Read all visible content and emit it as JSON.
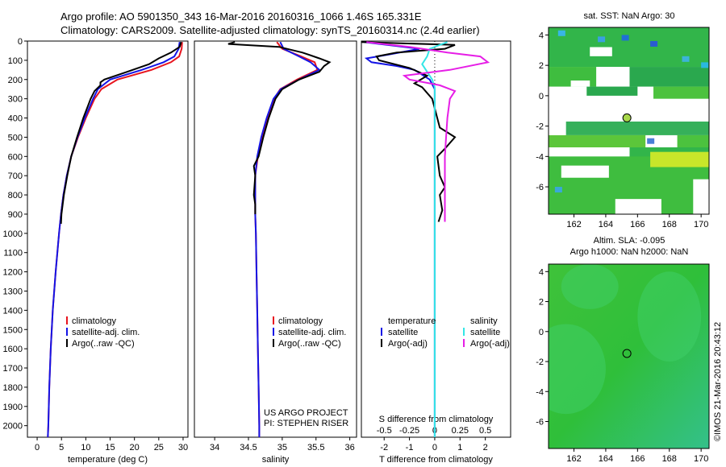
{
  "header": {
    "line1": "Argo profile: AO 5901350_343 16-Mar-2016 20160316_1066 1.46S 165.331E",
    "line2": "Climatology: CARS2009. Satellite-adjusted climatology: synTS_20160314.nc (2.4d earlier)"
  },
  "colors": {
    "climatology": "#e8141e",
    "satellite": "#1414e6",
    "argo": "#000000",
    "sat_salinity": "#33e6e6",
    "argo_salinity": "#e61ee6",
    "map_green": "#2fbf3a"
  },
  "footer": {
    "project": "US ARGO PROJECT",
    "pi": "PI: STEPHEN RISER",
    "imos": "©IMOS 21-Mar-2016 20:43:12"
  },
  "chart_data": [
    {
      "type": "line",
      "id": "temperature",
      "xlabel": "temperature (deg C)",
      "xlim": [
        -2,
        31
      ],
      "xticks": [
        0,
        5,
        10,
        15,
        20,
        25,
        30
      ],
      "xticklabels": [
        "0",
        "5",
        "10",
        "15",
        "20",
        "25",
        "30"
      ],
      "ylim": [
        2060,
        0
      ],
      "yticks": [
        0,
        100,
        200,
        300,
        400,
        500,
        600,
        700,
        800,
        900,
        1000,
        1100,
        1200,
        1300,
        1400,
        1500,
        1600,
        1700,
        1800,
        1900,
        2000
      ],
      "yticklabels": [
        "0",
        "100",
        "200",
        "300",
        "400",
        "500",
        "600",
        "700",
        "800",
        "900",
        "1000",
        "1100",
        "1200",
        "1300",
        "1400",
        "1500",
        "1600",
        "1700",
        "1800",
        "1900",
        "2000"
      ],
      "legend": [
        "climatology",
        "satellite-adj. clim.",
        "Argo(..raw -QC)"
      ],
      "series": [
        {
          "name": "climatology",
          "color": "#e8141e",
          "depth": [
            5,
            40,
            80,
            110,
            150,
            200,
            250,
            300,
            400,
            500,
            600,
            700,
            800,
            900,
            1000,
            1200,
            1400,
            1600,
            1800,
            2000,
            2060
          ],
          "values": [
            29.8,
            29.7,
            29.2,
            27.5,
            23.5,
            16.5,
            13.2,
            11.8,
            10.0,
            8.4,
            7.0,
            6.1,
            5.4,
            4.9,
            4.5,
            3.8,
            3.2,
            2.8,
            2.5,
            2.3,
            2.2
          ]
        },
        {
          "name": "satellite-adj. clim.",
          "color": "#1414e6",
          "depth": [
            5,
            40,
            80,
            110,
            150,
            200,
            250,
            300,
            400,
            500,
            600,
            700,
            800,
            900,
            1000,
            1200,
            1400,
            1600,
            1800,
            2000,
            2060
          ],
          "values": [
            29.3,
            29.1,
            28.2,
            26.0,
            21.5,
            15.0,
            12.5,
            11.5,
            9.8,
            8.3,
            7.0,
            6.1,
            5.4,
            4.9,
            4.5,
            3.8,
            3.2,
            2.8,
            2.5,
            2.3,
            2.2
          ]
        },
        {
          "name": "Argo(..raw -QC)",
          "color": "#000000",
          "depth": [
            5,
            30,
            60,
            90,
            120,
            160,
            200,
            215,
            230,
            260,
            300,
            400,
            500,
            600,
            700,
            800,
            900,
            950
          ],
          "values": [
            29.6,
            29.3,
            27.5,
            25.0,
            23.0,
            18.5,
            13.8,
            13.0,
            13.0,
            11.8,
            11.0,
            9.5,
            8.2,
            7.0,
            6.2,
            5.5,
            5.0,
            4.9
          ]
        }
      ]
    },
    {
      "type": "line",
      "id": "salinity",
      "xlabel": "salinity",
      "xlim": [
        33.7,
        36.1
      ],
      "xticks": [
        34,
        34.5,
        35,
        35.5,
        36
      ],
      "xticklabels": [
        "34",
        "34.5",
        "35",
        "35.5",
        "36"
      ],
      "ylim": [
        2060,
        0
      ],
      "legend": [
        "climatology",
        "satellite-adj. clim.",
        "Argo(..raw -QC)"
      ],
      "series": [
        {
          "name": "climatology",
          "color": "#e8141e",
          "depth": [
            5,
            40,
            80,
            110,
            150,
            200,
            250,
            300,
            400,
            500,
            600,
            700,
            800,
            900,
            1000,
            1200,
            1400,
            1600,
            1800,
            2000,
            2060
          ],
          "values": [
            34.92,
            35.0,
            35.28,
            35.48,
            35.52,
            35.22,
            34.97,
            34.88,
            34.78,
            34.7,
            34.64,
            34.6,
            34.6,
            34.6,
            34.61,
            34.62,
            34.63,
            34.64,
            34.65,
            34.66,
            34.66
          ]
        },
        {
          "name": "satellite-adj. clim.",
          "color": "#1414e6",
          "depth": [
            5,
            40,
            80,
            110,
            150,
            200,
            250,
            300,
            400,
            500,
            600,
            700,
            800,
            900,
            1000,
            1200,
            1400,
            1600,
            1800,
            2000,
            2060
          ],
          "values": [
            34.97,
            35.02,
            35.25,
            35.42,
            35.55,
            35.25,
            34.98,
            34.87,
            34.77,
            34.69,
            34.63,
            34.6,
            34.6,
            34.6,
            34.61,
            34.62,
            34.63,
            34.64,
            34.65,
            34.66,
            34.66
          ]
        },
        {
          "name": "Argo(..raw -QC)",
          "color": "#000000",
          "depth": [
            5,
            15,
            30,
            60,
            90,
            110,
            130,
            160,
            200,
            250,
            300,
            400,
            500,
            600,
            650,
            700,
            800,
            850,
            900
          ],
          "values": [
            34.3,
            34.2,
            34.95,
            35.3,
            35.55,
            35.7,
            35.62,
            35.55,
            35.25,
            35.0,
            34.9,
            34.8,
            34.72,
            34.65,
            34.58,
            34.6,
            34.58,
            34.6,
            34.6
          ]
        }
      ]
    },
    {
      "type": "line",
      "id": "differences",
      "xlabel": "T difference from climatology",
      "x2label": "S difference from climatology",
      "xlim": [
        -2.9,
        3.0
      ],
      "xticks": [
        -2,
        -1,
        0,
        1,
        2
      ],
      "xticklabels": [
        "-2",
        "-1",
        "0",
        "1",
        "2"
      ],
      "x2ticks": [
        -2,
        -1,
        0,
        1,
        2
      ],
      "x2ticklabels": [
        "-0.5",
        "-0.25",
        "0",
        "0.25",
        "0.5"
      ],
      "ylim": [
        2060,
        0
      ],
      "legend_temperature": {
        "title": "temperature",
        "items": [
          "satellite",
          "Argo(-adj)"
        ]
      },
      "legend_salinity": {
        "title": "salinity",
        "items": [
          "satellite",
          "Argo(-adj)"
        ]
      },
      "series": [
        {
          "name": "temperature satellite",
          "color": "#1414e6",
          "depth": [
            5,
            40,
            70,
            90,
            110,
            130,
            150,
            200,
            250,
            300,
            400,
            500,
            600,
            700,
            800,
            900,
            1000,
            1200,
            1400,
            1600,
            1800,
            2000,
            2060
          ],
          "values": [
            -2.8,
            -0.6,
            -1.8,
            -2.7,
            -2.5,
            -1.5,
            -0.8,
            -0.2,
            0,
            0,
            0,
            0,
            0,
            0,
            0,
            0,
            0,
            0,
            0,
            0,
            0,
            0,
            0
          ]
        },
        {
          "name": "temperature Argo(-adj)",
          "color": "#000000",
          "depth": [
            5,
            20,
            40,
            60,
            80,
            100,
            140,
            180,
            220,
            240,
            300,
            450,
            500,
            560,
            600,
            700,
            760,
            800,
            880,
            940
          ],
          "values": [
            -2.9,
            0.8,
            0.4,
            -1.5,
            -2.3,
            -2.2,
            -1.0,
            -0.3,
            -0.8,
            -0.5,
            -0.1,
            0.2,
            0.8,
            0.4,
            0.1,
            0.2,
            0.4,
            0.2,
            0.3,
            0.15
          ]
        },
        {
          "name": "salinity satellite",
          "color": "#33e6e6",
          "depth": [
            5,
            40,
            80,
            120,
            160,
            200,
            240,
            300,
            400,
            600,
            800,
            1000,
            1500,
            2000,
            2060
          ],
          "values": [
            0.5,
            -0.2,
            -0.3,
            -0.5,
            -0.3,
            -0.1,
            0,
            0,
            0,
            0,
            0,
            0,
            0,
            0,
            0
          ]
        },
        {
          "name": "salinity Argo(-adj)",
          "color": "#e61ee6",
          "depth": [
            5,
            30,
            60,
            80,
            110,
            150,
            180,
            200,
            230,
            260,
            300,
            400,
            500,
            600,
            700,
            800,
            900,
            940
          ],
          "values": [
            -2.7,
            -1.0,
            0.5,
            1.8,
            2.1,
            0.6,
            -1.2,
            -1.0,
            0.2,
            0.8,
            0.6,
            0.5,
            0.45,
            0.4,
            0.4,
            0.4,
            0.4,
            0.4
          ]
        }
      ]
    },
    {
      "type": "heatmap",
      "id": "sst-map",
      "title": "sat. SST: NaN Argo: 30",
      "xlim": [
        160.4,
        170.5
      ],
      "ylim": [
        -7.8,
        4.5
      ],
      "xticks": [
        162,
        164,
        166,
        168,
        170
      ],
      "xticklabels": [
        "162",
        "164",
        "166",
        "168",
        "170"
      ],
      "yticks": [
        4,
        2,
        0,
        -2,
        -4,
        -6
      ],
      "yticklabels": [
        "4",
        "2",
        "0",
        "-2",
        "-4",
        "-6"
      ],
      "argo_position": {
        "lon": 165.331,
        "lat": -1.46
      }
    },
    {
      "type": "heatmap",
      "id": "sla-map",
      "title": "Altim. SLA: -0.095",
      "subtitle": "Argo h1000: NaN h2000: NaN",
      "xlim": [
        160.4,
        170.5
      ],
      "ylim": [
        -7.8,
        4.5
      ],
      "xticks": [
        162,
        164,
        166,
        168,
        170
      ],
      "xticklabels": [
        "162",
        "164",
        "166",
        "168",
        "170"
      ],
      "yticks": [
        4,
        2,
        0,
        -2,
        -4,
        -6
      ],
      "yticklabels": [
        "4",
        "2",
        "0",
        "-2",
        "-4",
        "-6"
      ],
      "argo_position": {
        "lon": 165.331,
        "lat": -1.46
      }
    }
  ]
}
